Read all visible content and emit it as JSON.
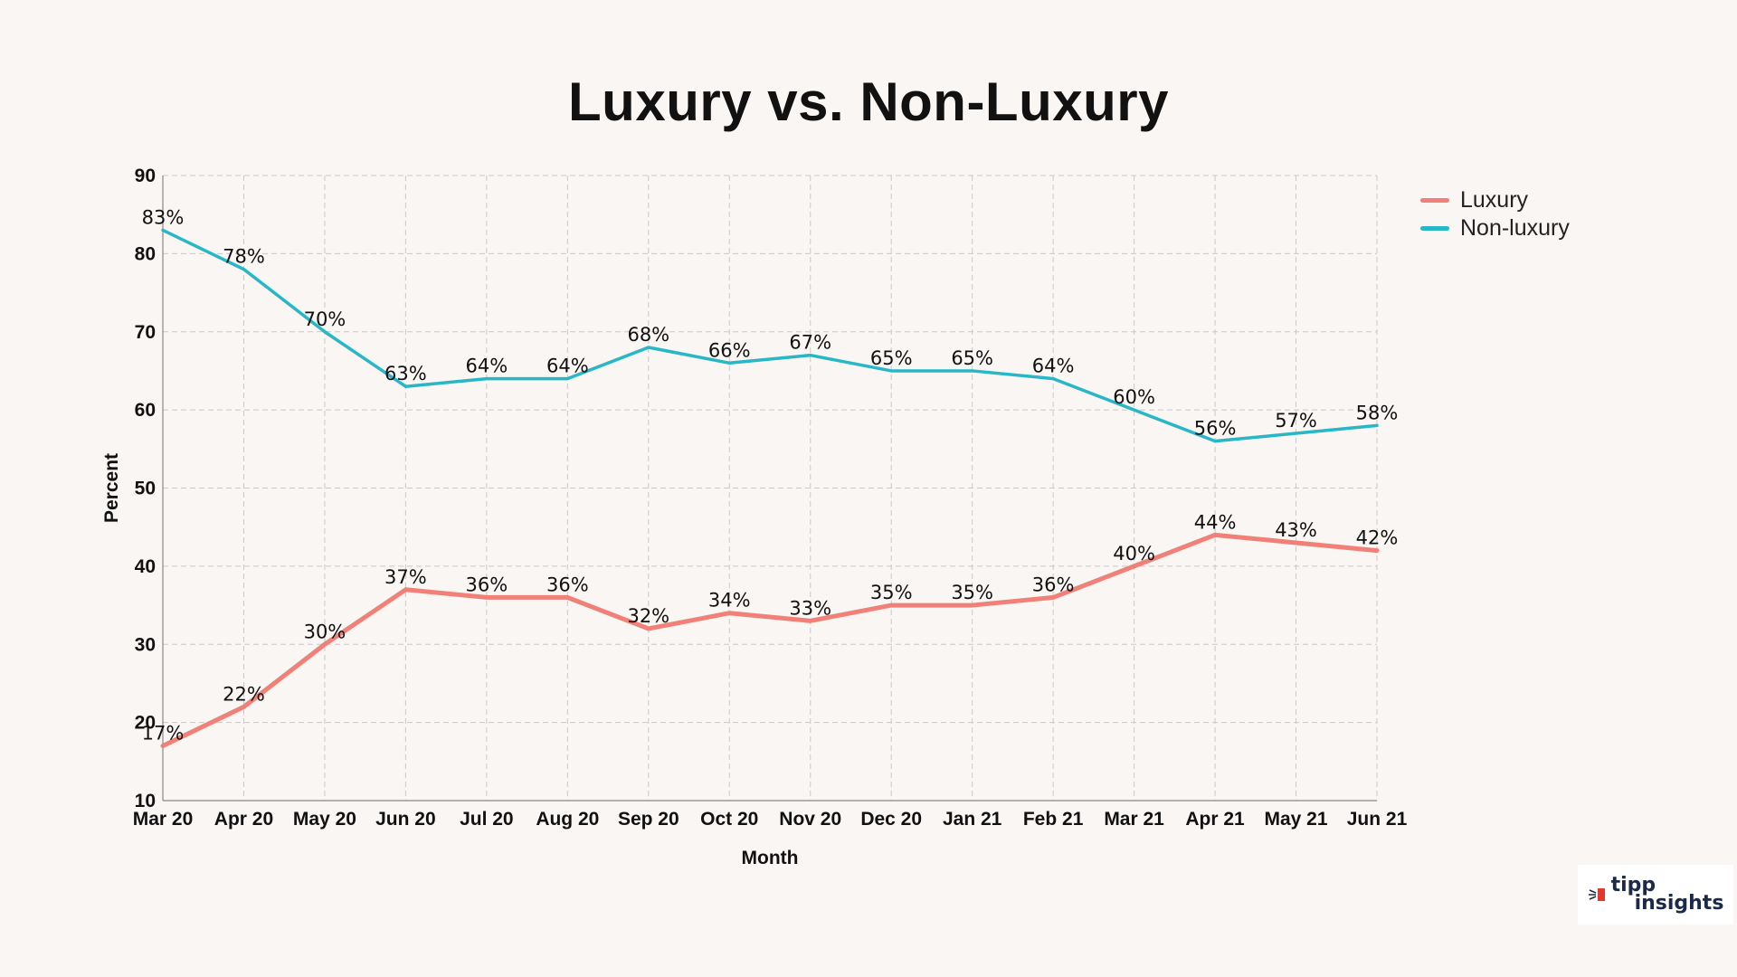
{
  "chart_data": {
    "type": "line",
    "title": "Luxury vs. Non-Luxury",
    "xlabel": "Month",
    "ylabel": "Percent",
    "ylim": [
      10,
      90
    ],
    "yticks": [
      10,
      20,
      30,
      40,
      50,
      60,
      70,
      80,
      90
    ],
    "grid": true,
    "legend_position": "top-right",
    "categories": [
      "Mar 20",
      "Apr 20",
      "May 20",
      "Jun 20",
      "Jul 20",
      "Aug 20",
      "Sep 20",
      "Oct 20",
      "Nov 20",
      "Dec 20",
      "Jan 21",
      "Feb 21",
      "Mar 21",
      "Apr 21",
      "May 21",
      "Jun 21"
    ],
    "series": [
      {
        "name": "Luxury",
        "color": "#f08078",
        "values": [
          17,
          22,
          30,
          37,
          36,
          36,
          32,
          34,
          33,
          35,
          35,
          36,
          40,
          44,
          43,
          42
        ],
        "labels": [
          "17%",
          "22%",
          "30%",
          "37%",
          "36%",
          "36%",
          "32%",
          "34%",
          "33%",
          "35%",
          "35%",
          "36%",
          "40%",
          "44%",
          "43%",
          "42%"
        ]
      },
      {
        "name": "Non-luxury",
        "color": "#27b7c6",
        "values": [
          83,
          78,
          70,
          63,
          64,
          64,
          68,
          66,
          67,
          65,
          65,
          64,
          60,
          56,
          57,
          58
        ],
        "labels": [
          "83%",
          "78%",
          "70%",
          "63%",
          "64%",
          "64%",
          "68%",
          "66%",
          "67%",
          "65%",
          "65%",
          "64%",
          "60%",
          "56%",
          "57%",
          "58%"
        ]
      }
    ]
  },
  "logo": {
    "line1": "tipp",
    "line2": "insights",
    "icon": "tipp-logo-mark-icon"
  }
}
